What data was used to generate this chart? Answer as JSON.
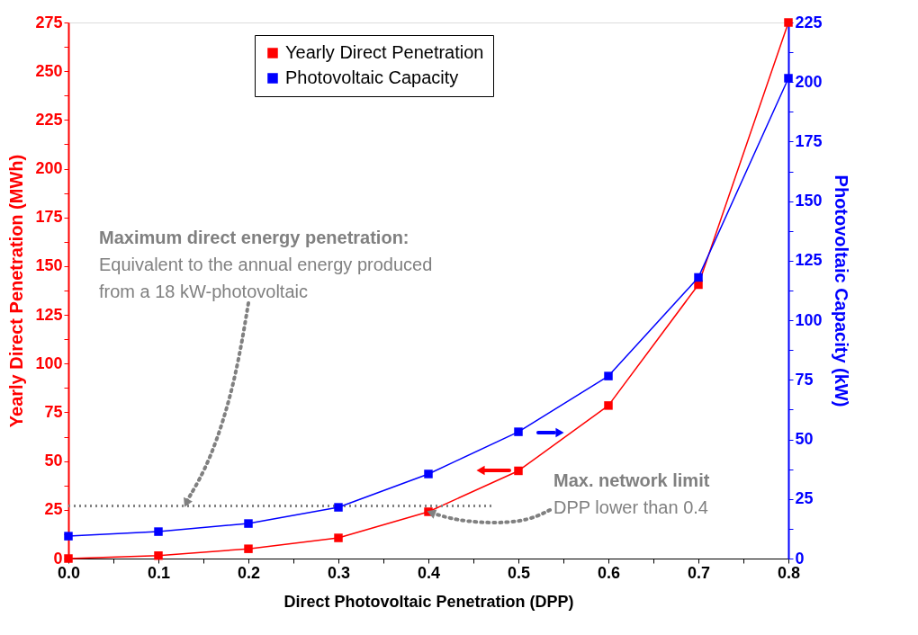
{
  "chart_data": {
    "type": "line",
    "xlabel": "Direct Photovoltaic Penetration (DPP)",
    "ylabel": "Yearly Direct Penetration (MWh)",
    "y2label": "Photovoltaic Capacity (kW)",
    "x": [
      0,
      0.1,
      0.2,
      0.3,
      0.4,
      0.5,
      0.6,
      0.7,
      0.8
    ],
    "series": [
      {
        "name": "Yearly Direct Penetration",
        "color": "#ff0000",
        "values": [
          0,
          1.5,
          5,
          10.6,
          24,
          45,
          78.5,
          140.5,
          275
        ]
      },
      {
        "name": "Photovoltaic Capacity",
        "color": "#0000ff",
        "axis": "y2",
        "values": [
          9.4,
          11.3,
          14.7,
          21.5,
          35.5,
          53.2,
          76.6,
          118,
          201.6
        ]
      },
      {
        "type": "line",
        "color": "#808080",
        "line_style": "dotted",
        "marker": "none",
        "x": [
          0,
          0.47
        ],
        "values": [
          27,
          27
        ]
      }
    ],
    "xlim": [
      0,
      0.8
    ],
    "xticks": [
      {
        "value": 0,
        "label": "0.0"
      },
      {
        "value": 0.05,
        "label": null
      },
      {
        "value": 0.1,
        "label": "0.1"
      },
      {
        "value": 0.15,
        "label": null
      },
      {
        "value": 0.2,
        "label": "0.2"
      },
      {
        "value": 0.25,
        "label": null
      },
      {
        "value": 0.3,
        "label": "0.3"
      },
      {
        "value": 0.35,
        "label": null
      },
      {
        "value": 0.4,
        "label": "0.4"
      },
      {
        "value": 0.45,
        "label": null
      },
      {
        "value": 0.5,
        "label": "0.5"
      },
      {
        "value": 0.55,
        "label": null
      },
      {
        "value": 0.6,
        "label": "0.6"
      },
      {
        "value": 0.65,
        "label": null
      },
      {
        "value": 0.7,
        "label": "0.7"
      },
      {
        "value": 0.75,
        "label": null
      },
      {
        "value": 0.8,
        "label": "0.8"
      }
    ],
    "ylim": [
      0,
      275
    ],
    "yticks": [
      0,
      {
        "value": 12.5,
        "label": null
      },
      25,
      {
        "value": 37.5,
        "label": null
      },
      50,
      {
        "value": 62.5,
        "label": null
      },
      75,
      {
        "value": 87.5,
        "label": null
      },
      100,
      {
        "value": 112.5,
        "label": null
      },
      125,
      {
        "value": 137.5,
        "label": null
      },
      150,
      {
        "value": 162.5,
        "label": null
      },
      175,
      {
        "value": 187.5,
        "label": null
      },
      200,
      {
        "value": 212.5,
        "label": null
      },
      225,
      {
        "value": 237.5,
        "label": null
      },
      250,
      {
        "value": 262.5,
        "label": null
      },
      275
    ],
    "y2lim": [
      0,
      225
    ],
    "y2ticks": [
      0,
      {
        "value": 12.5,
        "label": null
      },
      25,
      {
        "value": 37.5,
        "label": null
      },
      50,
      {
        "value": 62.5,
        "label": null
      },
      75,
      {
        "value": 87.5,
        "label": null
      },
      100,
      {
        "value": 112.5,
        "label": null
      },
      125,
      {
        "value": 137.5,
        "label": null
      },
      150,
      {
        "value": 162.5,
        "label": null
      },
      175,
      {
        "value": 187.5,
        "label": null
      },
      200,
      {
        "value": 212.5,
        "label": null
      },
      225
    ],
    "annotations": [
      "Maximum direct energy penetration:",
      "Equivalent to the annual energy produced",
      {
        "text": "from a 18 kW-photovoltaic",
        "x": 0.13,
        "y": 27
      },
      "Max. network limit",
      {
        "text": "DPP lower than 0.4",
        "x": 0.4,
        "y": 24
      }
    ],
    "legend": "top",
    "grid": false,
    "marker": "square",
    "line_style": "solid"
  }
}
